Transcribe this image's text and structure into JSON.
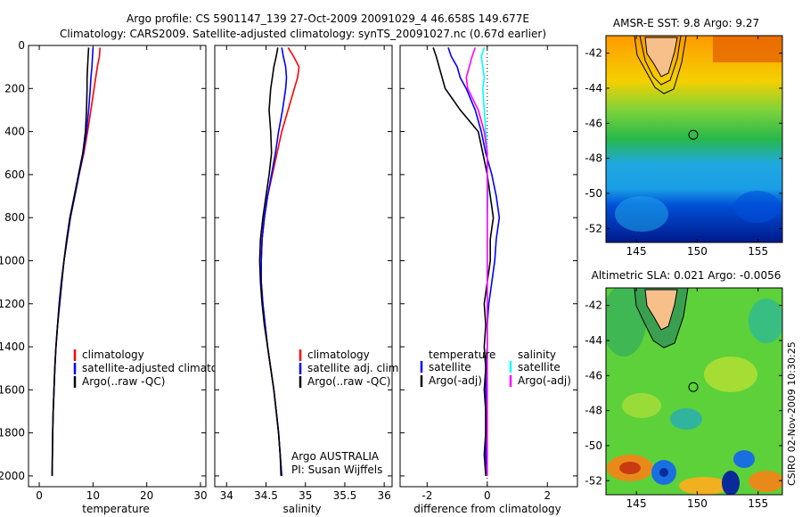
{
  "header": {
    "line1": "Argo profile: CS 5901147_139 27-Oct-2009 20091029_4 46.658S 149.677E",
    "line2": "Climatology: CARS2009. Satellite-adjusted climatology: synTS_20091027.nc (0.67d earlier)"
  },
  "footer": {
    "stamp": "CSIRO 02-Nov-2009 10:30:25"
  },
  "colors": {
    "red": "#ff0000",
    "blue": "#0000ff",
    "black": "#000000",
    "cyan": "#00ffff",
    "magenta": "#ff00ff"
  },
  "chart_data": [
    {
      "type": "line",
      "xlabel": "temperature",
      "ylabel": "",
      "xlim": [
        -2,
        31
      ],
      "ylim": [
        2050,
        0
      ],
      "xticks": [
        "0",
        "10",
        "20",
        "30"
      ],
      "yticks": [
        "0",
        "200",
        "400",
        "600",
        "800",
        "1000",
        "1200",
        "1400",
        "1600",
        "1800",
        "2000"
      ],
      "depth": [
        10,
        50,
        100,
        150,
        200,
        300,
        400,
        500,
        600,
        700,
        800,
        900,
        1000,
        1100,
        1200,
        1300,
        1400,
        1500,
        1600,
        1700,
        1800,
        1900,
        2000
      ],
      "series": [
        {
          "name": "climatology",
          "color": "#ff0000",
          "values": [
            11.3,
            11.2,
            10.8,
            10.5,
            10.2,
            9.6,
            9.0,
            8.3,
            7.4,
            6.6,
            5.8,
            5.2,
            4.6,
            4.1,
            3.7,
            3.4,
            3.1,
            2.9,
            2.75,
            2.6,
            2.5,
            2.45,
            2.4
          ]
        },
        {
          "name": "satellite-adjusted climatology",
          "color": "#0000ff",
          "values": [
            10.0,
            9.9,
            9.8,
            9.6,
            9.5,
            9.2,
            8.8,
            8.2,
            7.4,
            6.6,
            5.8,
            5.2,
            4.6,
            4.1,
            3.7,
            3.4,
            3.1,
            2.9,
            2.75,
            2.6,
            2.5,
            2.45,
            2.4
          ]
        },
        {
          "name": "Argo(..raw -QC)",
          "color": "#000000",
          "values": [
            9.2,
            9.1,
            9.0,
            8.9,
            8.9,
            8.8,
            8.6,
            8.1,
            7.3,
            6.5,
            5.7,
            5.1,
            4.6,
            4.2,
            3.8,
            3.4,
            3.1,
            2.9,
            2.75,
            2.6,
            2.5,
            2.45,
            2.4
          ]
        }
      ],
      "legend": [
        "climatology",
        "satellite-adjusted climatology",
        "Argo(..raw -QC)"
      ]
    },
    {
      "type": "line",
      "xlabel": "salinity",
      "xlim": [
        33.85,
        36.1
      ],
      "ylim": [
        2050,
        0
      ],
      "xticks": [
        "34",
        "34.5",
        "35",
        "35.5",
        "36"
      ],
      "depth": [
        10,
        50,
        100,
        150,
        200,
        300,
        400,
        500,
        600,
        700,
        800,
        900,
        1000,
        1100,
        1200,
        1300,
        1400,
        1500,
        1600,
        1700,
        1800,
        1900,
        2000
      ],
      "series": [
        {
          "name": "climatology",
          "color": "#ff0000",
          "values": [
            34.78,
            34.85,
            34.92,
            34.9,
            34.86,
            34.78,
            34.7,
            34.64,
            34.58,
            34.52,
            34.48,
            34.45,
            34.44,
            34.44,
            34.46,
            34.49,
            34.52,
            34.56,
            34.6,
            34.63,
            34.66,
            34.68,
            34.7
          ]
        },
        {
          "name": "satellite adj. clim.",
          "color": "#0000ff",
          "values": [
            34.7,
            34.72,
            34.75,
            34.76,
            34.75,
            34.71,
            34.66,
            34.62,
            34.57,
            34.52,
            34.48,
            34.45,
            34.44,
            34.44,
            34.46,
            34.49,
            34.52,
            34.56,
            34.6,
            34.63,
            34.66,
            34.68,
            34.7
          ]
        },
        {
          "name": "Argo(..raw -QC)",
          "color": "#000000",
          "values": [
            34.65,
            34.63,
            34.6,
            34.58,
            34.56,
            34.54,
            34.56,
            34.57,
            34.54,
            34.5,
            34.46,
            34.43,
            34.42,
            34.43,
            34.45,
            34.48,
            34.52,
            34.56,
            34.6,
            34.63,
            34.66,
            34.68,
            34.69
          ]
        }
      ],
      "legend": [
        "climatology",
        "satellite adj. clim.",
        "Argo(..raw -QC)"
      ],
      "annotation": [
        "Argo AUSTRALIA",
        "PI: Susan Wijffels"
      ]
    },
    {
      "type": "line",
      "xlabel": "difference from climatology",
      "xlim": [
        -2.9,
        3.0
      ],
      "ylim": [
        2050,
        0
      ],
      "xticks": [
        "-2",
        "0",
        "2"
      ],
      "depth": [
        10,
        50,
        100,
        150,
        200,
        300,
        400,
        500,
        600,
        700,
        800,
        900,
        1000,
        1100,
        1200,
        1300,
        1400,
        1500,
        1600,
        1700,
        1800,
        1900,
        2000
      ],
      "series": [
        {
          "name": "temperature satellite",
          "color": "#0000ff",
          "values": [
            -1.3,
            -1.2,
            -1.0,
            -0.9,
            -0.7,
            -0.4,
            -0.2,
            -0.05,
            0.15,
            0.3,
            0.4,
            0.3,
            0.25,
            0.15,
            0.05,
            0.0,
            0.0,
            -0.05,
            -0.05,
            -0.05,
            -0.05,
            -0.05,
            0.0
          ]
        },
        {
          "name": "temperature Argo(-adj)",
          "color": "#000000",
          "values": [
            -1.8,
            -1.7,
            -1.6,
            -1.5,
            -1.4,
            -0.9,
            -0.3,
            -0.15,
            0.0,
            0.1,
            0.2,
            0.1,
            0.1,
            0.0,
            -0.1,
            -0.05,
            -0.1,
            -0.05,
            -0.1,
            -0.05,
            -0.05,
            -0.1,
            -0.05
          ]
        },
        {
          "name": "salinity satellite",
          "color": "#00ffff",
          "values": [
            -0.1,
            -0.2,
            -0.15,
            -0.1,
            -0.15,
            -0.1,
            -0.05,
            0.0,
            0.0,
            0.02,
            0.0,
            0.0,
            0.0,
            0.0,
            0.0,
            0.0,
            0.0,
            0.0,
            0.0,
            0.0,
            0.0,
            0.0,
            0.0
          ]
        },
        {
          "name": "salinity Argo(-adj)",
          "color": "#ff00ff",
          "values": [
            -0.4,
            -0.5,
            -0.6,
            -0.7,
            -0.65,
            -0.3,
            -0.1,
            0.0,
            0.0,
            0.0,
            0.0,
            0.0,
            0.0,
            0.0,
            0.0,
            0.0,
            0.0,
            0.0,
            0.0,
            0.0,
            0.0,
            0.0,
            0.0
          ]
        }
      ],
      "legend_titles": [
        "temperature",
        "salinity"
      ],
      "legend": [
        "satellite",
        "Argo(-adj)",
        "satellite",
        "Argo(-adj)"
      ]
    },
    {
      "type": "heatmap",
      "title": "AMSR-E SST: 9.8 Argo: 9.27",
      "xlim": [
        142.5,
        157
      ],
      "ylim": [
        -52.8,
        -41
      ],
      "xticks": [
        "145",
        "150",
        "155"
      ],
      "yticks": [
        "-42",
        "-44",
        "-46",
        "-48",
        "-50",
        "-52"
      ],
      "marker": [
        149.677,
        -46.658
      ]
    },
    {
      "type": "heatmap",
      "title": "Altimetric SLA: 0.021 Argo: -0.0056",
      "xlim": [
        142.5,
        157
      ],
      "ylim": [
        -52.8,
        -41
      ],
      "xticks": [
        "145",
        "150",
        "155"
      ],
      "yticks": [
        "-42",
        "-44",
        "-46",
        "-48",
        "-50",
        "-52"
      ],
      "marker": [
        149.677,
        -46.658
      ]
    }
  ]
}
